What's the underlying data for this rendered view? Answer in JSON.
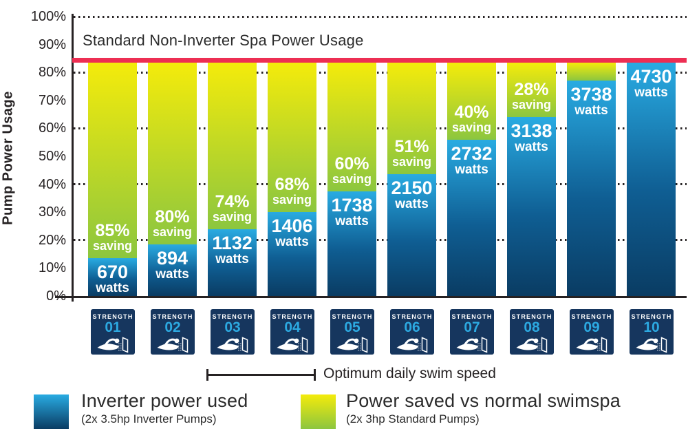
{
  "title": "Standard Non-Inverter Spa Power Usage",
  "y_axis": {
    "label": "Pump Power Usage",
    "ticks": [
      "100%",
      "90%",
      "80%",
      "70%",
      "60%",
      "50%",
      "40%",
      "30%",
      "20%",
      "10%",
      "0%"
    ]
  },
  "chart_data": {
    "type": "bar",
    "stacked": true,
    "title": "Standard Non-Inverter Spa Power Usage",
    "ylabel": "Pump Power Usage",
    "ylim": [
      0,
      100
    ],
    "y_tick_step_pct": 10,
    "gridlines_pct": [
      20,
      40,
      60,
      80,
      100
    ],
    "grid_style": "dotted",
    "legend_position": "bottom",
    "standard_line_pct": 85,
    "stack_top_pct": 83.5,
    "strength_word": "STRENGTH",
    "categories": [
      "STRENGTH 01",
      "STRENGTH 02",
      "STRENGTH 03",
      "STRENGTH 04",
      "STRENGTH 05",
      "STRENGTH 06",
      "STRENGTH 07",
      "STRENGTH 08",
      "STRENGTH 09",
      "STRENGTH 10"
    ],
    "series": [
      {
        "name": "Inverter power used",
        "unit": "watts",
        "values_watts": [
          670,
          894,
          1132,
          1406,
          1738,
          2150,
          2732,
          3138,
          3738,
          4730
        ],
        "values_pct_of_axis": [
          13.5,
          18.5,
          24,
          30,
          37.5,
          43.5,
          56,
          64,
          77,
          83.5
        ]
      },
      {
        "name": "Power saved vs normal swimspa",
        "unit": "% saving",
        "values_saving_pct": [
          85,
          80,
          74,
          68,
          60,
          51,
          40,
          28,
          null,
          null
        ]
      }
    ],
    "bars": [
      {
        "strength": "01",
        "watts": "670",
        "watts_word": "watts",
        "usage_pct": 13.5,
        "saving_label": "85%",
        "saving_word": "saving",
        "has_green": true
      },
      {
        "strength": "02",
        "watts": "894",
        "watts_word": "watts",
        "usage_pct": 18.5,
        "saving_label": "80%",
        "saving_word": "saving",
        "has_green": true
      },
      {
        "strength": "03",
        "watts": "1132",
        "watts_word": "watts",
        "usage_pct": 24,
        "saving_label": "74%",
        "saving_word": "saving",
        "has_green": true
      },
      {
        "strength": "04",
        "watts": "1406",
        "watts_word": "watts",
        "usage_pct": 30,
        "saving_label": "68%",
        "saving_word": "saving",
        "has_green": true
      },
      {
        "strength": "05",
        "watts": "1738",
        "watts_word": "watts",
        "usage_pct": 37.5,
        "saving_label": "60%",
        "saving_word": "saving",
        "has_green": true
      },
      {
        "strength": "06",
        "watts": "2150",
        "watts_word": "watts",
        "usage_pct": 43.5,
        "saving_label": "51%",
        "saving_word": "saving",
        "has_green": true
      },
      {
        "strength": "07",
        "watts": "2732",
        "watts_word": "watts",
        "usage_pct": 56,
        "saving_label": "40%",
        "saving_word": "saving",
        "has_green": true
      },
      {
        "strength": "08",
        "watts": "3138",
        "watts_word": "watts",
        "usage_pct": 64,
        "saving_label": "28%",
        "saving_word": "saving",
        "has_green": true
      },
      {
        "strength": "09",
        "watts": "3738",
        "watts_word": "watts",
        "usage_pct": 77,
        "saving_label": null,
        "saving_word": null,
        "has_green": true
      },
      {
        "strength": "10",
        "watts": "4730",
        "watts_word": "watts",
        "usage_pct": 83.5,
        "saving_label": null,
        "saving_word": null,
        "has_green": false
      }
    ]
  },
  "bracket": {
    "label": "Optimum daily swim speed"
  },
  "legend": {
    "items": [
      {
        "label": "Inverter power used",
        "sublabel": "(2x 3.5hp Inverter Pumps)",
        "swatch": "blue-gradient"
      },
      {
        "label": "Power saved vs normal swimspa",
        "sublabel": "(2x 3hp Standard Pumps)",
        "swatch": "yellow-green-gradient"
      }
    ]
  },
  "colors": {
    "blue_top": "#29ABE2",
    "blue_bottom": "#0A3C63",
    "yellow_top": "#F4EB0B",
    "green_bottom": "#8CC63F",
    "red_line": "#ED2E53",
    "badge_navy": "#16365E",
    "badge_number": "#2CA9E1",
    "axis_text": "#262223"
  }
}
